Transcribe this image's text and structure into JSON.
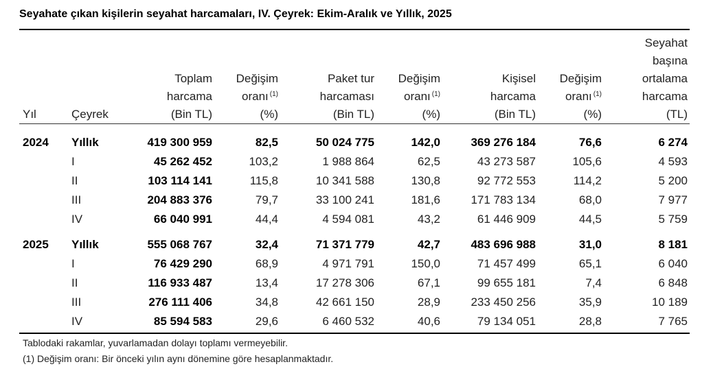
{
  "title": "Seyahate çıkan kişilerin seyahat harcamaları, IV. Çeyrek: Ekim-Aralık ve Yıllık, 2025",
  "headers": {
    "yil": "Yıl",
    "ceyrek": "Çeyrek",
    "toplam": [
      "Toplam",
      "harcama",
      "(Bin TL)"
    ],
    "degisim1": [
      "Değişim",
      "oranı",
      "(%)"
    ],
    "paket": [
      "Paket tur",
      "harcaması",
      "(Bin TL)"
    ],
    "degisim2": [
      "Değişim",
      "oranı",
      "(%)"
    ],
    "kisisel": [
      "Kişisel",
      "harcama",
      "(Bin TL)"
    ],
    "degisim3": [
      "Değişim",
      "oranı",
      "(%)"
    ],
    "ortalama": [
      "Seyahat",
      "başına",
      "ortalama",
      "harcama",
      "(TL)"
    ],
    "footnote_mark": "(1)"
  },
  "rows": [
    {
      "yil": "2024",
      "ceyrek": "Yıllık",
      "toplam": "419 300 959",
      "d1": "82,5",
      "paket": "50 024 775",
      "d2": "142,0",
      "kisisel": "369 276 184",
      "d3": "76,6",
      "ortalama": "6 274",
      "annual": true
    },
    {
      "yil": "",
      "ceyrek": "I",
      "toplam": "45 262 452",
      "d1": "103,2",
      "paket": "1 988 864",
      "d2": "62,5",
      "kisisel": "43 273 587",
      "d3": "105,6",
      "ortalama": "4 593",
      "annual": false
    },
    {
      "yil": "",
      "ceyrek": "II",
      "toplam": "103 114 141",
      "d1": "115,8",
      "paket": "10 341 588",
      "d2": "130,8",
      "kisisel": "92 772 553",
      "d3": "114,2",
      "ortalama": "5 200",
      "annual": false
    },
    {
      "yil": "",
      "ceyrek": "III",
      "toplam": "204 883 376",
      "d1": "79,7",
      "paket": "33 100 241",
      "d2": "181,6",
      "kisisel": "171 783 134",
      "d3": "68,0",
      "ortalama": "7 977",
      "annual": false
    },
    {
      "yil": "",
      "ceyrek": "IV",
      "toplam": "66 040 991",
      "d1": "44,4",
      "paket": "4 594 081",
      "d2": "43,2",
      "kisisel": "61 446 909",
      "d3": "44,5",
      "ortalama": "5 759",
      "annual": false
    },
    {
      "yil": "2025",
      "ceyrek": "Yıllık",
      "toplam": "555 068 767",
      "d1": "32,4",
      "paket": "71 371 779",
      "d2": "42,7",
      "kisisel": "483 696 988",
      "d3": "31,0",
      "ortalama": "8 181",
      "annual": true
    },
    {
      "yil": "",
      "ceyrek": "I",
      "toplam": "76 429 290",
      "d1": "68,9",
      "paket": "4 971 791",
      "d2": "150,0",
      "kisisel": "71 457 499",
      "d3": "65,1",
      "ortalama": "6 040",
      "annual": false
    },
    {
      "yil": "",
      "ceyrek": "II",
      "toplam": "116 933 487",
      "d1": "13,4",
      "paket": "17 278 306",
      "d2": "67,1",
      "kisisel": "99 655 181",
      "d3": "7,4",
      "ortalama": "6 848",
      "annual": false
    },
    {
      "yil": "",
      "ceyrek": "III",
      "toplam": "276 111 406",
      "d1": "34,8",
      "paket": "42 661 150",
      "d2": "28,9",
      "kisisel": "233 450 256",
      "d3": "35,9",
      "ortalama": "10 189",
      "annual": false
    },
    {
      "yil": "",
      "ceyrek": "IV",
      "toplam": "85 594 583",
      "d1": "29,6",
      "paket": "6 460 532",
      "d2": "40,6",
      "kisisel": "79 134 051",
      "d3": "28,8",
      "ortalama": "7 765",
      "annual": false
    }
  ],
  "notes": [
    "Tablodaki rakamlar, yuvarlamadan dolayı toplamı vermeyebilir.",
    "(1) Değişim oranı: Bir önceki yılın aynı dönemine göre hesaplanmaktadır."
  ]
}
